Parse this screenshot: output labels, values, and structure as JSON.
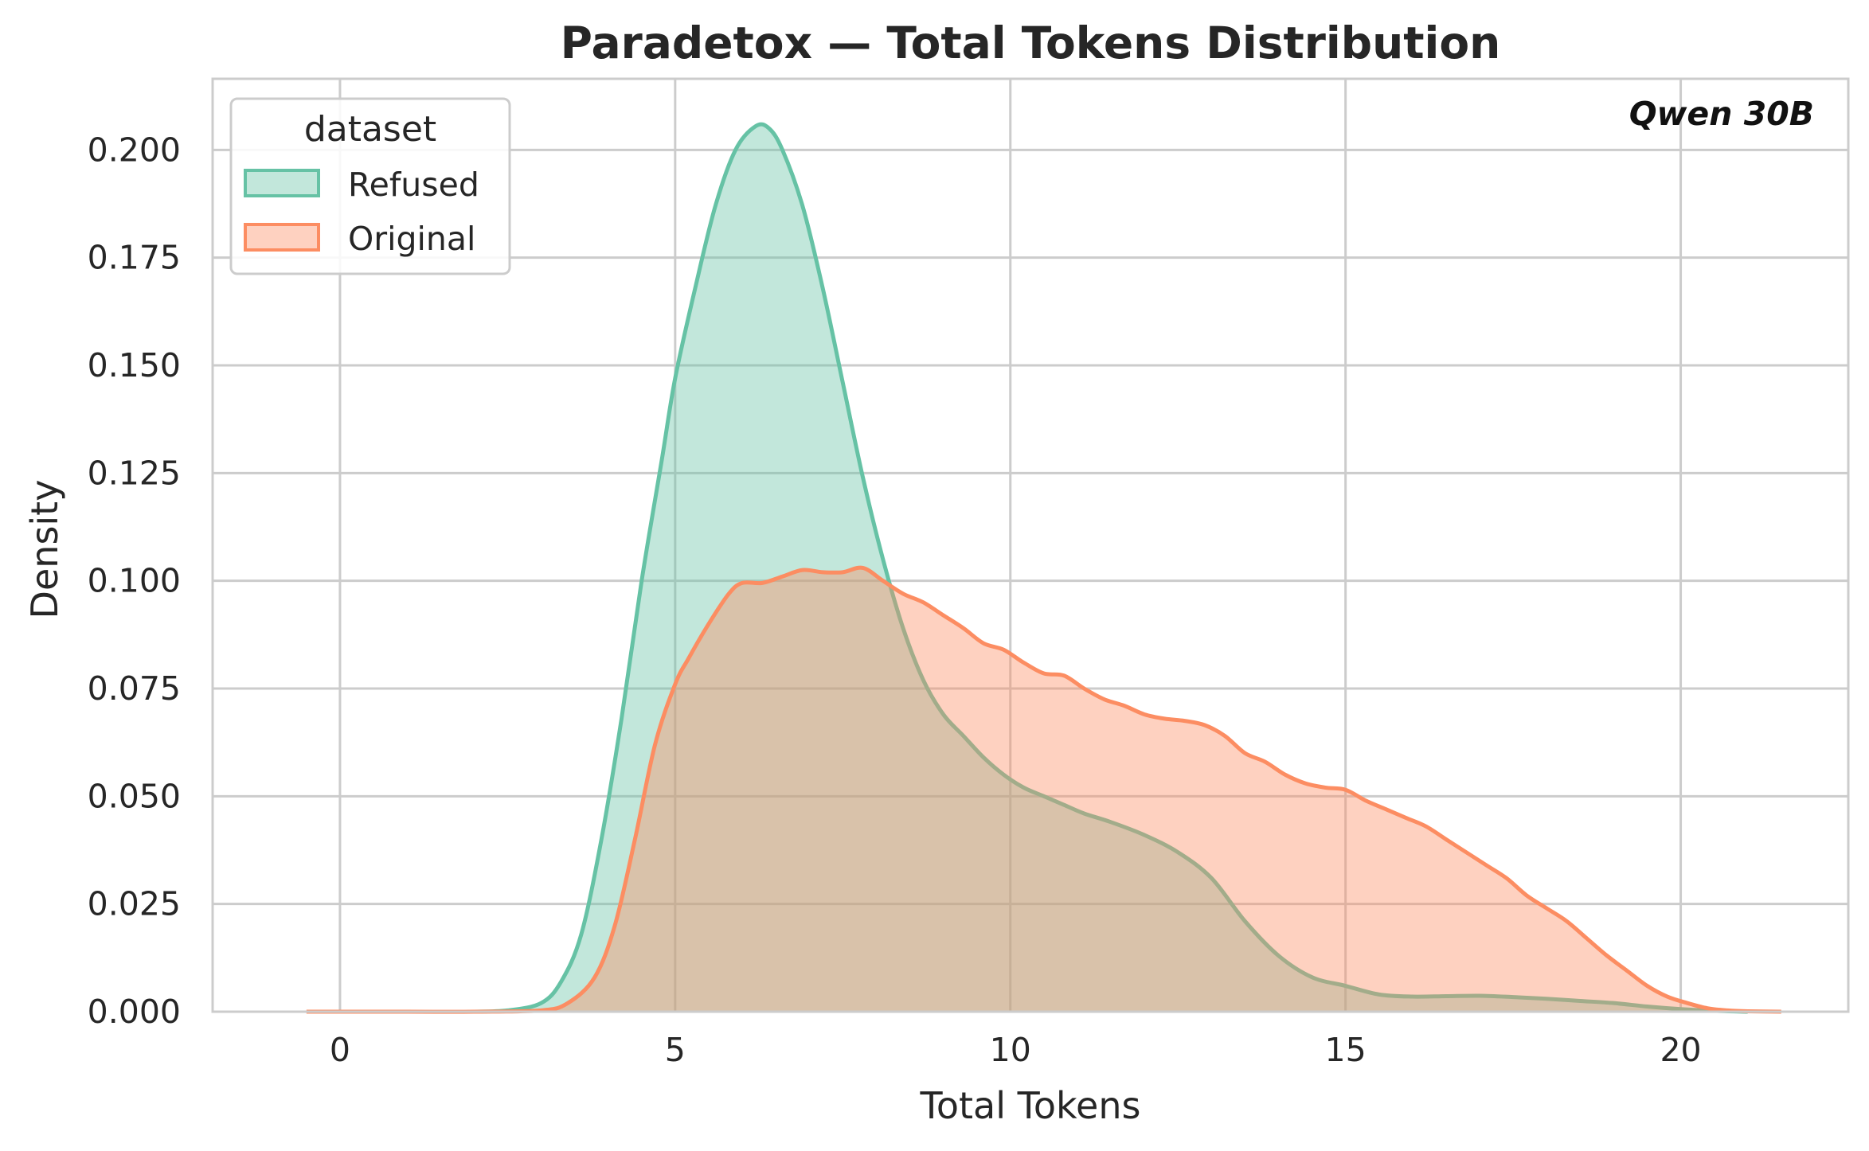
{
  "chart_data": {
    "type": "area",
    "title": "Paradetox — Total Tokens Distribution",
    "xlabel": "Total Tokens",
    "ylabel": "Density",
    "xlim": [
      -1.9,
      22.5
    ],
    "ylim": [
      0,
      0.2165
    ],
    "xticks": [
      0,
      5,
      10,
      15,
      20
    ],
    "xtick_labels": [
      "0",
      "5",
      "10",
      "15",
      "20"
    ],
    "yticks": [
      0,
      0.025,
      0.05,
      0.075,
      0.1,
      0.125,
      0.15,
      0.175,
      0.2
    ],
    "ytick_labels": [
      "0.000",
      "0.025",
      "0.050",
      "0.075",
      "0.100",
      "0.125",
      "0.150",
      "0.175",
      "0.200"
    ],
    "grid": true,
    "legend": {
      "title": "dataset",
      "placement": "top-left"
    },
    "annotation": "Qwen 30B",
    "series": [
      {
        "name": "Refused",
        "color": "#66c2a5",
        "x": [
          2.0,
          2.5,
          3.0,
          3.3,
          3.6,
          3.9,
          4.2,
          4.5,
          4.8,
          5.0,
          5.3,
          5.6,
          5.9,
          6.2,
          6.4,
          6.6,
          6.9,
          7.2,
          7.5,
          7.8,
          8.1,
          8.4,
          8.7,
          9.0,
          9.3,
          9.6,
          9.9,
          10.2,
          10.5,
          10.8,
          11.1,
          11.5,
          12.0,
          12.5,
          13.0,
          13.5,
          14.0,
          14.5,
          15.0,
          15.5,
          16.0,
          16.5,
          17.0,
          17.5,
          18.0,
          18.5,
          19.0,
          19.5,
          20.0,
          20.5,
          21.0
        ],
        "y": [
          0.0,
          0.0003,
          0.002,
          0.007,
          0.018,
          0.04,
          0.068,
          0.1,
          0.128,
          0.147,
          0.168,
          0.187,
          0.2,
          0.2055,
          0.205,
          0.2,
          0.187,
          0.168,
          0.146,
          0.124,
          0.105,
          0.089,
          0.077,
          0.069,
          0.064,
          0.059,
          0.055,
          0.052,
          0.05,
          0.048,
          0.046,
          0.044,
          0.041,
          0.037,
          0.031,
          0.021,
          0.013,
          0.008,
          0.006,
          0.004,
          0.0035,
          0.0036,
          0.0037,
          0.0034,
          0.003,
          0.0025,
          0.002,
          0.0012,
          0.0006,
          0.0002,
          0.0
        ]
      },
      {
        "name": "Original",
        "color": "#fc8d62",
        "x": [
          -0.5,
          1.0,
          2.0,
          3.0,
          3.4,
          3.8,
          4.1,
          4.4,
          4.7,
          5.0,
          5.2,
          5.5,
          5.8,
          6.0,
          6.3,
          6.6,
          6.9,
          7.2,
          7.5,
          7.8,
          8.1,
          8.4,
          8.7,
          9.0,
          9.3,
          9.6,
          9.9,
          10.2,
          10.5,
          10.8,
          11.1,
          11.4,
          11.7,
          12.0,
          12.3,
          12.6,
          12.9,
          13.2,
          13.5,
          13.8,
          14.1,
          14.4,
          14.7,
          15.0,
          15.3,
          15.6,
          15.9,
          16.2,
          16.5,
          16.8,
          17.1,
          17.4,
          17.7,
          18.0,
          18.3,
          18.6,
          18.9,
          19.2,
          19.5,
          19.8,
          20.1,
          20.4,
          20.7,
          21.0,
          21.5
        ],
        "y": [
          0.0,
          0.0,
          0.0,
          0.0003,
          0.002,
          0.008,
          0.02,
          0.04,
          0.062,
          0.076,
          0.082,
          0.09,
          0.097,
          0.0995,
          0.0995,
          0.101,
          0.1025,
          0.102,
          0.102,
          0.103,
          0.1,
          0.097,
          0.095,
          0.092,
          0.089,
          0.0855,
          0.084,
          0.081,
          0.0785,
          0.078,
          0.075,
          0.0725,
          0.071,
          0.069,
          0.068,
          0.0675,
          0.0665,
          0.064,
          0.06,
          0.058,
          0.055,
          0.053,
          0.052,
          0.0515,
          0.049,
          0.047,
          0.045,
          0.043,
          0.04,
          0.037,
          0.034,
          0.031,
          0.027,
          0.024,
          0.021,
          0.017,
          0.013,
          0.0095,
          0.006,
          0.0035,
          0.002,
          0.0008,
          0.0003,
          0.0001,
          0.0
        ]
      }
    ]
  }
}
